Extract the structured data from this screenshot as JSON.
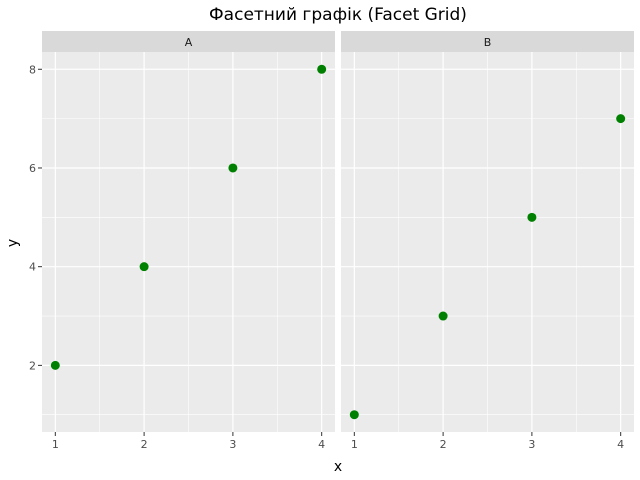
{
  "chart_data": {
    "type": "scatter",
    "title": "Фасетний графік (Facet Grid)",
    "xlabel": "x",
    "ylabel": "y",
    "xlim": [
      0.85,
      4.15
    ],
    "ylim": [
      0.65,
      8.35
    ],
    "x_ticks": [
      "1",
      "2",
      "3",
      "4"
    ],
    "y_ticks": [
      "2",
      "4",
      "6",
      "8"
    ],
    "point_color": "#008000",
    "panel_background": "#EBEBEB",
    "strip_background": "#D9D9D9",
    "grid": true,
    "facets": [
      {
        "label": "A",
        "x": [
          1,
          2,
          3,
          4
        ],
        "y": [
          2,
          4,
          6,
          8
        ]
      },
      {
        "label": "B",
        "x": [
          1,
          2,
          3,
          4
        ],
        "y": [
          1,
          3,
          5,
          7
        ]
      }
    ]
  }
}
